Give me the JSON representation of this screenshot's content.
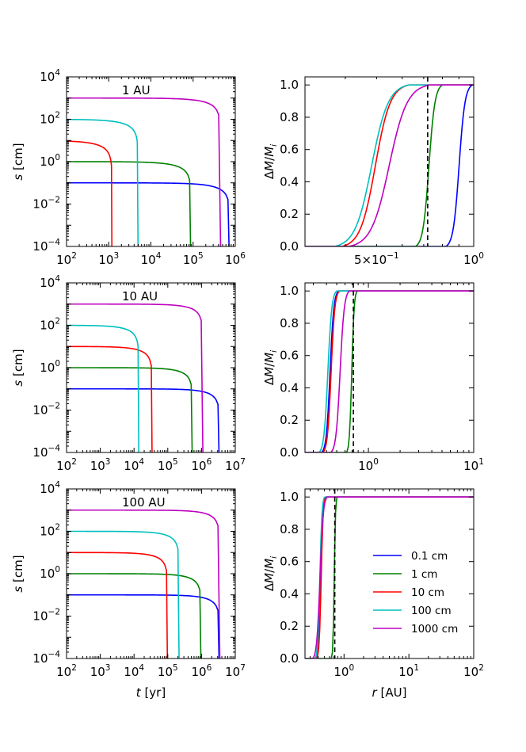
{
  "chart_data": [
    {
      "type": "line",
      "panel": "size-vs-time",
      "annotation": "1 AU",
      "xlabel": "",
      "ylabel": "s [cm]",
      "xscale": "log",
      "yscale": "log",
      "xlim": [
        100,
        1000000
      ],
      "ylim": [
        0.0001,
        10000
      ],
      "xticks": [
        "10^2",
        "10^3",
        "10^4",
        "10^5",
        "10^6"
      ],
      "yticks": [
        "10^-4",
        "10^-2",
        "10^0",
        "10^2",
        "10^4"
      ],
      "series": [
        {
          "name": "0.1 cm",
          "color": "#0000ff",
          "initial_size": 0.1,
          "end_time": 750000
        },
        {
          "name": "1 cm",
          "color": "#008000",
          "initial_size": 1,
          "end_time": 90000
        },
        {
          "name": "10 cm",
          "color": "#ff0000",
          "initial_size": 10,
          "end_time": 1200
        },
        {
          "name": "100 cm",
          "color": "#00bfbf",
          "initial_size": 100,
          "end_time": 5000
        },
        {
          "name": "1000 cm",
          "color": "#bf00bf",
          "initial_size": 1000,
          "end_time": 450000
        }
      ]
    },
    {
      "type": "line",
      "panel": "mass-loss-vs-radius",
      "xlabel": "",
      "ylabel": "ΔM/M_i",
      "xscale": "log",
      "yscale": "linear",
      "xlim": [
        0.3,
        1.0
      ],
      "ylim": [
        0.0,
        1.05
      ],
      "xticks": [
        "5×10^-1",
        "10^0"
      ],
      "yticks": [
        "0.0",
        "0.2",
        "0.4",
        "0.6",
        "0.8",
        "1.0"
      ],
      "reference_line": {
        "x": 0.72,
        "style": "dashed"
      },
      "series": [
        {
          "name": "0.1 cm",
          "color": "#0000ff",
          "r0": 0.82,
          "r1": 0.99
        },
        {
          "name": "1 cm",
          "color": "#008000",
          "r0": 0.66,
          "r1": 0.8
        },
        {
          "name": "10 cm",
          "color": "#ff0000",
          "r0": 0.39,
          "r1": 0.63
        },
        {
          "name": "100 cm",
          "color": "#00bfbf",
          "r0": 0.37,
          "r1": 0.63
        },
        {
          "name": "1000 cm",
          "color": "#bf00bf",
          "r0": 0.41,
          "r1": 0.73
        }
      ]
    },
    {
      "type": "line",
      "panel": "size-vs-time",
      "annotation": "10 AU",
      "xlabel": "",
      "ylabel": "s [cm]",
      "xscale": "log",
      "yscale": "log",
      "xlim": [
        100,
        10000000
      ],
      "ylim": [
        0.0001,
        10000
      ],
      "xticks": [
        "10^2",
        "10^3",
        "10^4",
        "10^5",
        "10^6",
        "10^7"
      ],
      "yticks": [
        "10^-4",
        "10^-2",
        "10^0",
        "10^2",
        "10^4"
      ],
      "series": [
        {
          "name": "0.1 cm",
          "color": "#0000ff",
          "initial_size": 0.1,
          "end_time": 3500000
        },
        {
          "name": "1 cm",
          "color": "#008000",
          "initial_size": 1,
          "end_time": 550000
        },
        {
          "name": "10 cm",
          "color": "#ff0000",
          "initial_size": 10,
          "end_time": 35000
        },
        {
          "name": "100 cm",
          "color": "#00bfbf",
          "initial_size": 100,
          "end_time": 14000
        },
        {
          "name": "1000 cm",
          "color": "#bf00bf",
          "initial_size": 1000,
          "end_time": 1100000
        }
      ]
    },
    {
      "type": "line",
      "panel": "mass-loss-vs-radius",
      "xlabel": "",
      "ylabel": "ΔM/M_i",
      "xscale": "log",
      "yscale": "linear",
      "xlim": [
        0.25,
        10
      ],
      "ylim": [
        0.0,
        1.05
      ],
      "xticks": [
        "10^0",
        "10^1"
      ],
      "yticks": [
        "0.0",
        "0.2",
        "0.4",
        "0.6",
        "0.8",
        "1.0"
      ],
      "reference_line": {
        "x": 0.72,
        "style": "dashed"
      },
      "series": [
        {
          "name": "0.1 cm",
          "color": "#0000ff",
          "r0": 0.36,
          "r1": 0.52
        },
        {
          "name": "1 cm",
          "color": "#008000",
          "r0": 0.62,
          "r1": 0.78
        },
        {
          "name": "10 cm",
          "color": "#ff0000",
          "r0": 0.37,
          "r1": 0.53
        },
        {
          "name": "100 cm",
          "color": "#00bfbf",
          "r0": 0.34,
          "r1": 0.5
        },
        {
          "name": "1000 cm",
          "color": "#bf00bf",
          "r0": 0.44,
          "r1": 0.66
        }
      ]
    },
    {
      "type": "line",
      "panel": "size-vs-time",
      "annotation": "100 AU",
      "xlabel": "t [yr]",
      "ylabel": "s [cm]",
      "xscale": "log",
      "yscale": "log",
      "xlim": [
        100,
        10000000
      ],
      "ylim": [
        0.0001,
        10000
      ],
      "xticks": [
        "10^2",
        "10^3",
        "10^4",
        "10^5",
        "10^6",
        "10^7"
      ],
      "yticks": [
        "10^-4",
        "10^-2",
        "10^0",
        "10^2",
        "10^4"
      ],
      "series": [
        {
          "name": "0.1 cm",
          "color": "#0000ff",
          "initial_size": 0.1,
          "end_time": 3500000
        },
        {
          "name": "1 cm",
          "color": "#008000",
          "initial_size": 1,
          "end_time": 1000000
        },
        {
          "name": "10 cm",
          "color": "#ff0000",
          "initial_size": 10,
          "end_time": 100000
        },
        {
          "name": "100 cm",
          "color": "#00bfbf",
          "initial_size": 100,
          "end_time": 220000
        },
        {
          "name": "1000 cm",
          "color": "#bf00bf",
          "initial_size": 1000,
          "end_time": 3500000
        }
      ]
    },
    {
      "type": "line",
      "panel": "mass-loss-vs-radius",
      "xlabel": "r [AU]",
      "ylabel": "ΔM/M_i",
      "xscale": "log",
      "yscale": "linear",
      "xlim": [
        0.25,
        100
      ],
      "ylim": [
        0.0,
        1.05
      ],
      "xticks": [
        "10^0",
        "10^1",
        "10^2"
      ],
      "yticks": [
        "0.0",
        "0.2",
        "0.4",
        "0.6",
        "0.8",
        "1.0"
      ],
      "reference_line": {
        "x": 0.72,
        "style": "dashed"
      },
      "legend": "lower-right",
      "series": [
        {
          "name": "0.1 cm",
          "color": "#0000ff",
          "r0": 0.36,
          "r1": 0.52
        },
        {
          "name": "1 cm",
          "color": "#008000",
          "r0": 0.64,
          "r1": 0.78
        },
        {
          "name": "10 cm",
          "color": "#ff0000",
          "r0": 0.38,
          "r1": 0.52
        },
        {
          "name": "100 cm",
          "color": "#00bfbf",
          "r0": 0.36,
          "r1": 0.5
        },
        {
          "name": "1000 cm",
          "color": "#bf00bf",
          "r0": 0.33,
          "r1": 0.55
        }
      ]
    }
  ]
}
